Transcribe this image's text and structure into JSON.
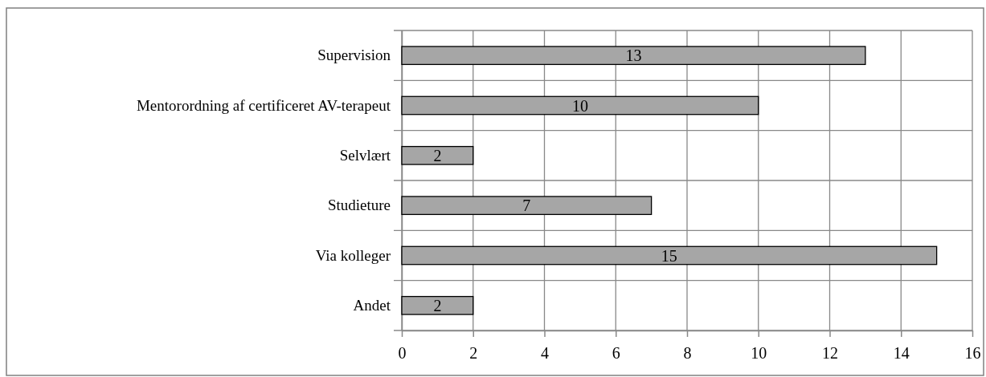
{
  "chart_data": {
    "type": "bar",
    "orientation": "horizontal",
    "categories": [
      "Supervision",
      "Mentorordning af certificeret AV-terapeut",
      "Selvlært",
      "Studieture",
      "Via kolleger",
      "Andet"
    ],
    "values": [
      13,
      10,
      2,
      7,
      15,
      2
    ],
    "color": "#a6a6a6",
    "xlim": [
      0,
      16
    ],
    "xticks": [
      0,
      2,
      4,
      6,
      8,
      10,
      12,
      14,
      16
    ],
    "grid": true,
    "data_labels": true
  }
}
